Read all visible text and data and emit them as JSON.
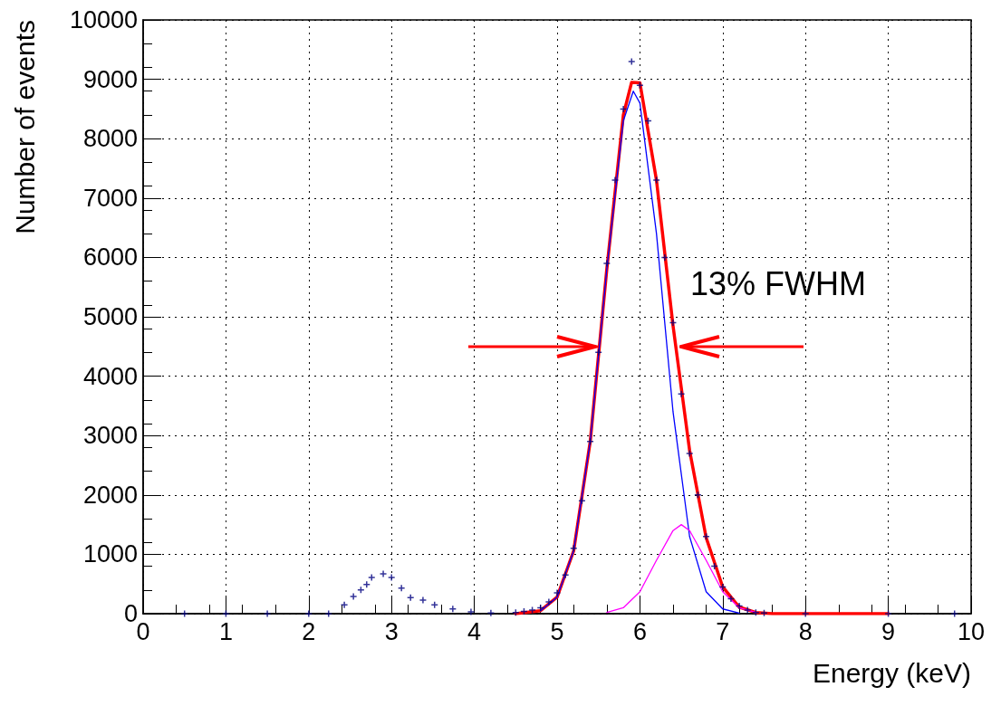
{
  "chart_data": {
    "type": "line",
    "xlabel": "Energy (keV)",
    "ylabel": "Number of events",
    "xlim": [
      0,
      10
    ],
    "xticks": [
      0,
      1,
      2,
      3,
      4,
      5,
      6,
      7,
      8,
      9,
      10
    ],
    "ylim": [
      0,
      10000
    ],
    "yticks": [
      0,
      1000,
      2000,
      3000,
      4000,
      5000,
      6000,
      7000,
      8000,
      9000,
      10000
    ],
    "grid": true,
    "annotations": [
      "13% FWHM"
    ],
    "series": [
      {
        "type": "scatter",
        "marker": "cross",
        "color": "#000080",
        "x": [
          0.5,
          1.0,
          1.5,
          2.0,
          2.24,
          2.43,
          2.54,
          2.63,
          2.7,
          2.76,
          2.9,
          3.0,
          3.12,
          3.23,
          3.38,
          3.52,
          3.74,
          3.96,
          4.2,
          4.5,
          4.6,
          4.7,
          4.8,
          4.9,
          5.0,
          5.1,
          5.2,
          5.3,
          5.4,
          5.5,
          5.6,
          5.7,
          5.8,
          5.9,
          6.0,
          6.1,
          6.2,
          6.3,
          6.4,
          6.5,
          6.6,
          6.7,
          6.8,
          6.9,
          7.0,
          7.1,
          7.2,
          7.3,
          7.4,
          7.5,
          8.0,
          9.0,
          9.8
        ],
        "values": [
          0,
          0,
          0,
          0,
          0,
          150,
          290,
          400,
          490,
          610,
          670,
          610,
          430,
          270,
          230,
          150,
          80,
          30,
          10,
          20,
          40,
          60,
          100,
          200,
          350,
          650,
          1100,
          1900,
          2900,
          4400,
          5900,
          7300,
          8500,
          9300,
          8900,
          8300,
          7300,
          6000,
          4900,
          3700,
          2700,
          2000,
          1300,
          800,
          450,
          250,
          130,
          60,
          20,
          10,
          0,
          0,
          0
        ]
      },
      {
        "type": "line",
        "marker": "none",
        "color": "#ff0000",
        "x": [
          4.5,
          4.8,
          5.0,
          5.2,
          5.4,
          5.6,
          5.8,
          5.9,
          6.0,
          6.2,
          6.4,
          6.6,
          6.8,
          7.0,
          7.2,
          7.4,
          7.6,
          8.0,
          9.0
        ],
        "values": [
          0,
          50,
          280,
          1060,
          2900,
          5800,
          8400,
          8950,
          8940,
          7300,
          4850,
          2750,
          1280,
          450,
          110,
          20,
          0,
          0,
          0
        ]
      },
      {
        "type": "line",
        "marker": "none",
        "color": "#0000ff",
        "x": [
          4.8,
          5.0,
          5.2,
          5.4,
          5.6,
          5.8,
          5.92,
          6.0,
          6.2,
          6.4,
          6.6,
          6.8,
          7.0,
          7.2
        ],
        "values": [
          50,
          280,
          1060,
          2900,
          5800,
          8300,
          8800,
          8600,
          6400,
          3400,
          1300,
          370,
          80,
          10
        ]
      },
      {
        "type": "line",
        "marker": "none",
        "color": "#ff00ff",
        "x": [
          5.6,
          5.8,
          6.0,
          6.2,
          6.4,
          6.5,
          6.6,
          6.8,
          7.0,
          7.2,
          7.4
        ],
        "values": [
          20,
          100,
          370,
          900,
          1400,
          1500,
          1400,
          900,
          370,
          100,
          20
        ]
      }
    ]
  }
}
